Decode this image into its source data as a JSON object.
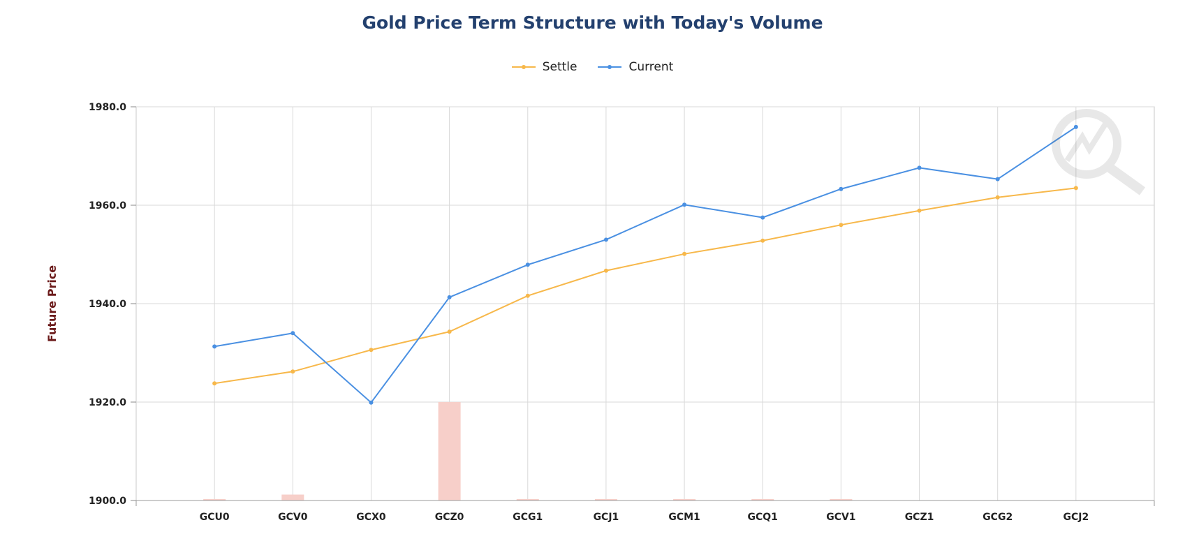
{
  "chart_data": {
    "type": "line",
    "title": "Gold Price Term Structure with Today's Volume",
    "ylabel": "Future Price",
    "xlabel": "",
    "ylim": [
      1900,
      1980
    ],
    "yticks": [
      "1980.0",
      "1960.0",
      "1940.0",
      "1920.0",
      "1900.0"
    ],
    "ytick_values": [
      1980,
      1960,
      1940,
      1920,
      1900
    ],
    "categories": [
      "GCU0",
      "GCV0",
      "GCX0",
      "GCZ0",
      "GCG1",
      "GCJ1",
      "GCM1",
      "GCQ1",
      "GCV1",
      "GCZ1",
      "GCG2",
      "GCJ2"
    ],
    "series": [
      {
        "name": "Settle",
        "color": "#f7b84b",
        "values": [
          1923.8,
          1926.2,
          1930.6,
          1934.3,
          1941.6,
          1946.7,
          1950.1,
          1952.8,
          1956.0,
          1958.9,
          1961.6,
          1963.5
        ]
      },
      {
        "name": "Current",
        "color": "#4a90e2",
        "values": [
          1931.3,
          1934.0,
          1919.9,
          1941.3,
          1947.9,
          1953.0,
          1960.1,
          1957.5,
          1963.3,
          1967.6,
          1965.3,
          1975.9
        ]
      }
    ],
    "volume": {
      "color": "#f7cfc9",
      "values": [
        0.3,
        1.2,
        0,
        20,
        0.3,
        0.3,
        0.3,
        0.3,
        0.3,
        0,
        0,
        0
      ]
    },
    "grid": true,
    "legend": "top-center"
  }
}
